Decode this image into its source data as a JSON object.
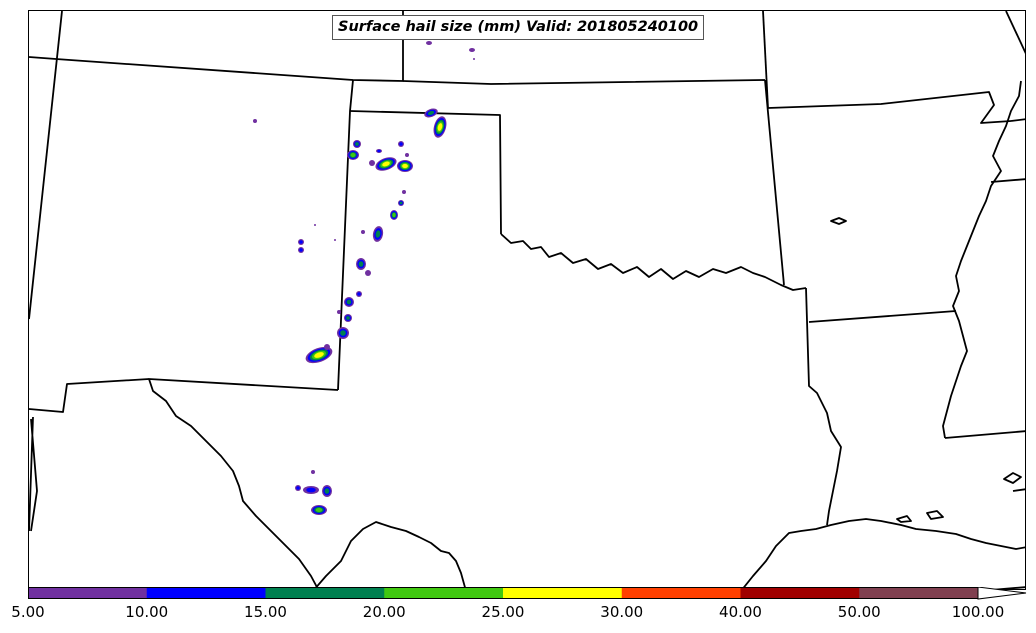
{
  "title": "Surface hail size (mm) Valid: 201805240100",
  "colorbar": {
    "tick_labels": [
      "5.00",
      "10.00",
      "15.00",
      "20.00",
      "25.00",
      "30.00",
      "40.00",
      "50.00",
      "100.00"
    ],
    "colors": [
      "#7030a0",
      "#0000ff",
      "#008050",
      "#40c810",
      "#ffff00",
      "#ff4000",
      "#a00000",
      "#804050"
    ],
    "extend": "max"
  },
  "map": {
    "region": "southern plains (NM, TX, OK, KS, CO, AR, LA, MS)",
    "boundary_color": "#000000",
    "hail_colors": {
      "outer": "#7030a0",
      "ring1": "#0000ff",
      "ring2": "#008050",
      "ring3": "#40c810",
      "ring4": "#ffff00",
      "ring5": "#ff4000"
    }
  }
}
